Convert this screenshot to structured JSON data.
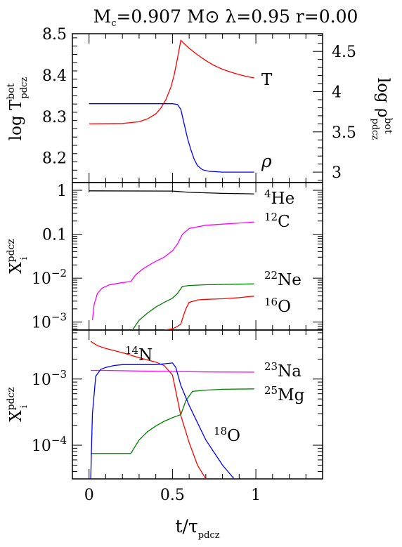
{
  "title": {
    "m": "M",
    "m_sub": "c",
    "mass_text": "=0.907 M",
    "sun_symbol": "⊙",
    "rest": " λ=0.95 r=0.00"
  },
  "x_axis": {
    "label_main": "t/τ",
    "label_sub": "pdcz",
    "range": [
      -0.1,
      1.4
    ],
    "ticks": [
      0,
      0.5,
      1
    ],
    "tick_labels": [
      "0",
      "0.5",
      "1"
    ]
  },
  "chart_data": [
    {
      "type": "line",
      "panel": "top",
      "ylabel_left": {
        "main": "log T",
        "sup": "bot",
        "sub": "pdcz"
      },
      "ylabel_right": {
        "main": "log ρ",
        "sup": "bot",
        "sub": "pdcz"
      },
      "ylim_left": [
        8.14,
        8.5
      ],
      "ylim_right": [
        2.87,
        4.72
      ],
      "left_ticks": [
        8.2,
        8.3,
        8.4,
        8.5
      ],
      "left_tick_labels": [
        "8.2",
        "8.3",
        "8.4",
        "8.5"
      ],
      "right_ticks": [
        3,
        3.5,
        4,
        4.5
      ],
      "right_tick_labels": [
        "3",
        "3.5",
        "4",
        "4.5"
      ],
      "series": [
        {
          "name": "T",
          "axis": "left",
          "color": "#ff0000",
          "x": [
            0,
            0.2,
            0.3,
            0.35,
            0.4,
            0.43,
            0.46,
            0.49,
            0.51,
            0.53,
            0.55,
            0.57,
            0.6,
            0.65,
            0.7,
            0.75,
            0.8,
            0.85,
            0.9,
            0.95,
            0.99
          ],
          "y": [
            8.282,
            8.283,
            8.287,
            8.294,
            8.306,
            8.32,
            8.34,
            8.37,
            8.4,
            8.44,
            8.484,
            8.476,
            8.465,
            8.449,
            8.435,
            8.423,
            8.414,
            8.407,
            8.401,
            8.396,
            8.393
          ]
        },
        {
          "name": "ρ",
          "axis": "right",
          "color": "#0000ff",
          "x": [
            0,
            0.5,
            0.53,
            0.55,
            0.57,
            0.59,
            0.61,
            0.63,
            0.65,
            0.68,
            0.72,
            0.76,
            0.8,
            0.9,
            0.99
          ],
          "y": [
            3.85,
            3.85,
            3.84,
            3.78,
            3.6,
            3.42,
            3.28,
            3.16,
            3.08,
            3.03,
            3.01,
            3.005,
            3.0,
            3.0,
            3.0
          ]
        }
      ]
    },
    {
      "type": "line",
      "panel": "middle",
      "yscale": "log",
      "ylabel": {
        "main": "X",
        "sup": "pdcz",
        "sub": "i"
      },
      "ylim": [
        0.00066,
        1.5
      ],
      "ticks": [
        0.001,
        0.01,
        0.1,
        1
      ],
      "tick_labels": [
        {
          "base": "10",
          "exp": "−3"
        },
        {
          "base": "10",
          "exp": "−2"
        },
        {
          "base": "0.1",
          "exp": ""
        },
        {
          "base": "1",
          "exp": ""
        }
      ],
      "series": [
        {
          "name": "He",
          "mass_number": "4",
          "color": "#000000",
          "x": [
            0,
            0.5,
            0.6,
            0.8,
            0.99
          ],
          "y": [
            0.97,
            0.96,
            0.9,
            0.85,
            0.83
          ]
        },
        {
          "name": "C",
          "mass_number": "12",
          "color": "#ff00ff",
          "x": [
            0.02,
            0.03,
            0.05,
            0.08,
            0.12,
            0.18,
            0.25,
            0.28,
            0.32,
            0.38,
            0.45,
            0.5,
            0.53,
            0.56,
            0.6,
            0.7,
            0.8,
            0.9,
            0.99
          ],
          "y": [
            0.0011,
            0.0025,
            0.0045,
            0.006,
            0.007,
            0.0077,
            0.0084,
            0.012,
            0.016,
            0.022,
            0.03,
            0.042,
            0.06,
            0.1,
            0.135,
            0.16,
            0.17,
            0.18,
            0.19
          ]
        },
        {
          "name": "Ne",
          "mass_number": "22",
          "color": "#008000",
          "x": [
            0.26,
            0.3,
            0.35,
            0.4,
            0.45,
            0.5,
            0.53,
            0.56,
            0.6,
            0.7,
            0.8,
            0.9,
            0.99
          ],
          "y": [
            0.00066,
            0.0011,
            0.0016,
            0.0022,
            0.0028,
            0.0035,
            0.0045,
            0.0065,
            0.0068,
            0.0071,
            0.0072,
            0.0073,
            0.0074
          ]
        },
        {
          "name": "O",
          "mass_number": "16",
          "color": "#ff0000",
          "x": [
            0.45,
            0.5,
            0.53,
            0.55,
            0.56,
            0.58,
            0.6,
            0.65,
            0.7,
            0.8,
            0.9,
            0.99
          ],
          "y": [
            0.00066,
            0.0007,
            0.0008,
            0.0009,
            0.0012,
            0.002,
            0.0028,
            0.0032,
            0.0033,
            0.0034,
            0.0036,
            0.0039
          ]
        }
      ]
    },
    {
      "type": "line",
      "panel": "bottom",
      "yscale": "log",
      "ylabel": {
        "main": "X",
        "sup": "pdcz",
        "sub": "i"
      },
      "ylim": [
        3.1e-05,
        0.0055
      ],
      "xlim": [
        -0.1,
        1.4
      ],
      "ticks": [
        0.0001,
        0.001
      ],
      "tick_labels": [
        {
          "base": "10",
          "exp": "−4"
        },
        {
          "base": "10",
          "exp": "−3"
        }
      ],
      "series": [
        {
          "name": "N",
          "mass_number": "14",
          "color": "#ff0000",
          "x": [
            0.01,
            0.05,
            0.1,
            0.2,
            0.3,
            0.4,
            0.45,
            0.5,
            0.55,
            0.6,
            0.65,
            0.7
          ],
          "y": [
            0.0037,
            0.0032,
            0.0029,
            0.0025,
            0.0021,
            0.0018,
            0.0016,
            0.00115,
            0.00028,
            0.00011,
            5e-05,
            3.1e-05
          ]
        },
        {
          "name": "Na",
          "mass_number": "23",
          "color": "#ff00ff",
          "x": [
            0.01,
            0.1,
            0.3,
            0.5,
            0.7,
            0.99
          ],
          "y": [
            0.00135,
            0.00135,
            0.00132,
            0.0013,
            0.00128,
            0.00127
          ]
        },
        {
          "name": "Mg",
          "mass_number": "25",
          "color": "#008000",
          "x": [
            0.01,
            0.1,
            0.25,
            0.3,
            0.35,
            0.4,
            0.45,
            0.5,
            0.55,
            0.58,
            0.62,
            0.7,
            0.8,
            0.99
          ],
          "y": [
            7.5e-05,
            7.5e-05,
            7.5e-05,
            0.00012,
            0.00016,
            0.000195,
            0.00023,
            0.00026,
            0.00029,
            0.00047,
            0.00065,
            0.00068,
            0.0007,
            0.00071
          ]
        },
        {
          "name": "O",
          "mass_number": "18",
          "color": "#0000ff",
          "x": [
            0.01,
            0.02,
            0.04,
            0.07,
            0.1,
            0.15,
            0.2,
            0.3,
            0.4,
            0.45,
            0.5,
            0.52,
            0.55,
            0.6,
            0.7,
            0.8,
            0.87
          ],
          "y": [
            3.1e-05,
            0.0003,
            0.0011,
            0.0014,
            0.0015,
            0.0016,
            0.00165,
            0.00165,
            0.00165,
            0.0017,
            0.00175,
            0.0015,
            0.0008,
            0.0004,
            0.00012,
            5e-05,
            3.1e-05
          ]
        }
      ]
    }
  ]
}
